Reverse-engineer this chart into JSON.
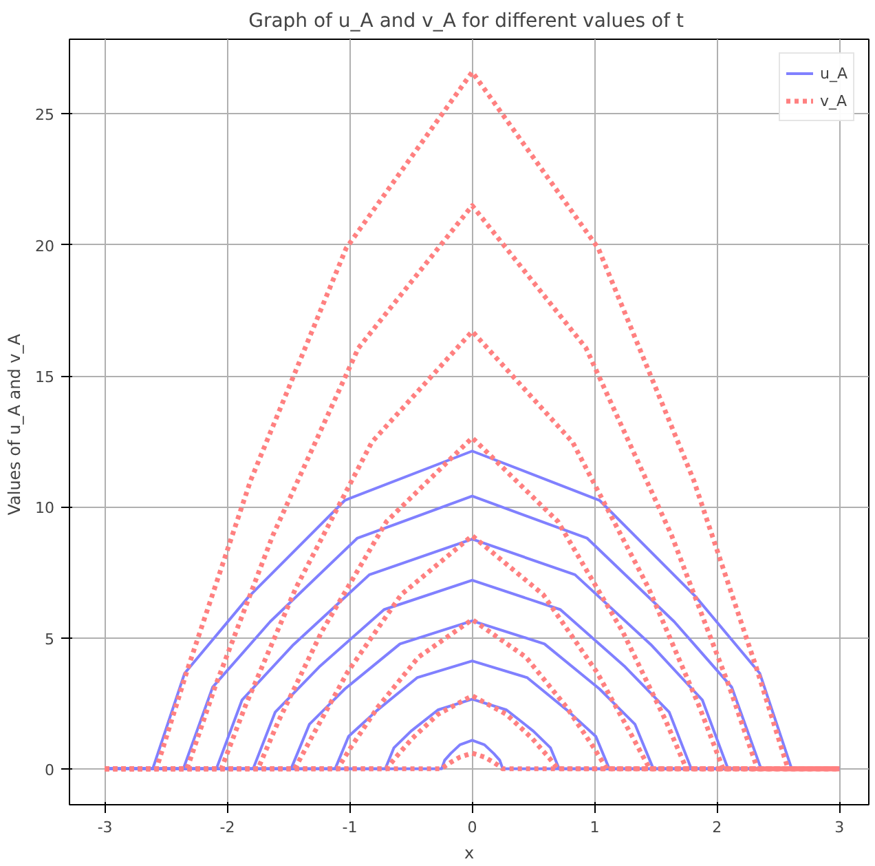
{
  "chart_data": {
    "type": "line",
    "title": "Graph of u_A  and v_A for different values of t",
    "xlabel": "x",
    "ylabel": "Values of u_A  and v_A",
    "xlim": [
      -3.29,
      3.24
    ],
    "ylim": [
      -1.37,
      27.85
    ],
    "xticks": [
      -3,
      -2,
      -1,
      0,
      1,
      2,
      3
    ],
    "yticks": [
      0,
      5,
      10,
      15,
      20,
      25
    ],
    "grid": true,
    "legend": "top right",
    "series": [
      {
        "name": "u_A",
        "color": "#8080ff",
        "line_style": "solid",
        "x": [
          -3,
          -0.25,
          -0.225,
          -0.175,
          -0.1,
          0,
          0.1,
          0.175,
          0.225,
          0.25,
          3
        ],
        "values": [
          0,
          0,
          0.33,
          0.59,
          0.92,
          1.09,
          0.92,
          0.59,
          0.33,
          0,
          0
        ]
      },
      {
        "color": "#8080ff",
        "line_style": "solid",
        "x": [
          -3,
          -0.71,
          -0.64,
          -0.5,
          -0.28,
          0,
          0.28,
          0.5,
          0.64,
          0.71,
          3
        ],
        "values": [
          0,
          0,
          0.8,
          1.44,
          2.25,
          2.66,
          2.25,
          1.44,
          0.8,
          0,
          0
        ]
      },
      {
        "color": "#8080ff",
        "line_style": "solid",
        "x": [
          -3,
          -1.12,
          -1.01,
          -0.78,
          -0.45,
          0,
          0.45,
          0.78,
          1.01,
          1.12,
          3
        ],
        "values": [
          0,
          0,
          1.24,
          2.22,
          3.48,
          4.12,
          3.48,
          2.22,
          1.24,
          0,
          0
        ]
      },
      {
        "color": "#8080ff",
        "line_style": "solid",
        "x": [
          -3,
          -1.48,
          -1.33,
          -1.04,
          -0.59,
          0,
          0.59,
          1.04,
          1.33,
          1.48,
          3
        ],
        "values": [
          0,
          0,
          1.7,
          3.05,
          4.77,
          5.65,
          4.77,
          3.05,
          1.7,
          0,
          0
        ]
      },
      {
        "color": "#8080ff",
        "line_style": "solid",
        "x": [
          -3,
          -1.79,
          -1.61,
          -1.25,
          -0.72,
          0,
          0.72,
          1.25,
          1.61,
          1.79,
          3
        ],
        "values": [
          0,
          0,
          2.16,
          3.89,
          6.08,
          7.2,
          6.08,
          3.89,
          2.16,
          0,
          0
        ]
      },
      {
        "color": "#8080ff",
        "line_style": "solid",
        "x": [
          -3,
          -2.09,
          -1.88,
          -1.46,
          -0.84,
          0,
          0.84,
          1.46,
          1.88,
          2.09,
          3
        ],
        "values": [
          0,
          0,
          2.63,
          4.74,
          7.41,
          8.77,
          7.41,
          4.74,
          2.63,
          0,
          0
        ]
      },
      {
        "color": "#8080ff",
        "line_style": "solid",
        "x": [
          -3,
          -2.36,
          -2.12,
          -1.65,
          -0.94,
          0,
          0.94,
          1.65,
          2.12,
          2.36,
          3
        ],
        "values": [
          0,
          0,
          3.12,
          5.62,
          8.8,
          10.41,
          8.8,
          5.62,
          3.12,
          0,
          0
        ]
      },
      {
        "color": "#8080ff",
        "line_style": "solid",
        "x": [
          -3,
          -2.61,
          -2.35,
          -1.83,
          -1.04,
          0,
          1.04,
          1.83,
          2.35,
          2.61,
          3
        ],
        "values": [
          0,
          0,
          3.64,
          6.55,
          10.25,
          12.13,
          10.25,
          6.55,
          3.64,
          0,
          0
        ]
      },
      {
        "name": "v_A",
        "color": "#ff8080",
        "line_style": "dotted",
        "x": [
          -3,
          -0.25,
          -0.225,
          -0.175,
          -0.1,
          0,
          0.1,
          0.175,
          0.225,
          0.25,
          3
        ],
        "values": [
          0,
          0,
          0.09,
          0.25,
          0.45,
          0.6,
          0.45,
          0.25,
          0.09,
          0,
          0
        ]
      },
      {
        "color": "#ff8080",
        "line_style": "dotted",
        "x": [
          -3,
          -0.7,
          -0.63,
          -0.49,
          -0.28,
          0,
          0.28,
          0.49,
          0.63,
          0.7,
          3
        ],
        "values": [
          0,
          0,
          0.41,
          1.16,
          2.08,
          2.79,
          2.08,
          1.16,
          0.41,
          0,
          0
        ]
      },
      {
        "color": "#ff8080",
        "line_style": "dotted",
        "x": [
          -3,
          -1.1,
          -0.99,
          -0.77,
          -0.44,
          0,
          0.44,
          0.77,
          0.99,
          1.1,
          3
        ],
        "values": [
          0,
          0,
          0.83,
          2.36,
          4.26,
          5.7,
          4.26,
          2.36,
          0.83,
          0,
          0
        ]
      },
      {
        "color": "#ff8080",
        "line_style": "dotted",
        "x": [
          -3,
          -1.45,
          -1.3,
          -1.02,
          -0.58,
          0,
          0.58,
          1.02,
          1.3,
          1.45,
          3
        ],
        "values": [
          0,
          0,
          1.3,
          3.68,
          6.65,
          8.9,
          6.65,
          3.68,
          1.3,
          0,
          0
        ]
      },
      {
        "color": "#ff8080",
        "line_style": "dotted",
        "x": [
          -3,
          -1.75,
          -1.58,
          -1.23,
          -0.7,
          0,
          0.7,
          1.23,
          1.58,
          1.75,
          3
        ],
        "values": [
          0,
          0,
          1.85,
          5.23,
          9.44,
          12.64,
          9.44,
          5.23,
          1.85,
          0,
          0
        ]
      },
      {
        "color": "#ff8080",
        "line_style": "dotted",
        "x": [
          -3,
          -2.05,
          -1.85,
          -1.44,
          -0.82,
          0,
          0.82,
          1.44,
          1.85,
          2.05,
          3
        ],
        "values": [
          0,
          0,
          2.44,
          6.91,
          12.47,
          16.7,
          12.47,
          6.91,
          2.44,
          0,
          0
        ]
      },
      {
        "color": "#ff8080",
        "line_style": "dotted",
        "x": [
          -3,
          -2.33,
          -2.1,
          -1.63,
          -0.93,
          0,
          0.93,
          1.63,
          2.1,
          2.33,
          3
        ],
        "values": [
          0,
          0,
          3.14,
          8.9,
          16.06,
          21.5,
          16.06,
          8.9,
          3.14,
          0,
          0
        ]
      },
      {
        "color": "#ff8080",
        "line_style": "dotted",
        "x": [
          -3,
          -2.58,
          -2.32,
          -1.81,
          -1.03,
          0,
          1.03,
          1.81,
          2.32,
          2.58,
          3
        ],
        "values": [
          0,
          0,
          3.88,
          11.01,
          19.87,
          26.6,
          19.87,
          11.01,
          3.88,
          0,
          0
        ]
      }
    ]
  }
}
